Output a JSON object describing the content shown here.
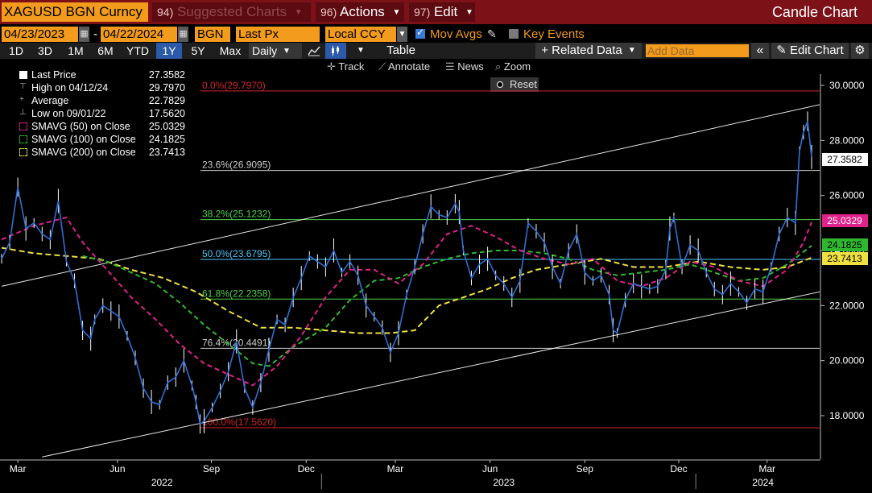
{
  "topbar": {
    "ticker": "XAGUSD BGN Curncy",
    "suggested_num": "94)",
    "suggested_label": "Suggested Charts",
    "actions_num": "96)",
    "actions_label": "Actions",
    "edit_num": "97)",
    "edit_label": "Edit",
    "chart_type": "Candle Chart"
  },
  "settings": {
    "start_date": "04/23/2023",
    "dash": "-",
    "end_date": "04/22/2024",
    "source": "BGN",
    "field": "Last Px",
    "currency": "Local CCY",
    "mov_avgs_label": "Mov Avgs",
    "key_events_label": "Key Events"
  },
  "toolbar": {
    "periods": [
      "1D",
      "3D",
      "1M",
      "6M",
      "YTD",
      "1Y",
      "5Y",
      "Max"
    ],
    "selected_period": "1Y",
    "frequency": "Daily",
    "table_label": "Table",
    "related_data_label": "+ Related Data",
    "add_data_placeholder": "Add Data",
    "collapse": "«",
    "edit_chart_label": "Edit Chart"
  },
  "tools": {
    "track": "Track",
    "annotate": "Annotate",
    "news": "News",
    "zoom": "Zoom",
    "reset": "Reset"
  },
  "legend": [
    {
      "label": "Last Price",
      "value": "27.3582",
      "color": "#ffffff"
    },
    {
      "label": "High on 04/12/24",
      "value": "29.7970",
      "color": "#cccccc"
    },
    {
      "label": "Average",
      "value": "22.7829",
      "color": "#cccccc"
    },
    {
      "label": "Low on 09/01/22",
      "value": "17.5620",
      "color": "#cccccc"
    },
    {
      "label": "SMAVG (50)  on Close",
      "value": "25.0329",
      "color": "#e0218a"
    },
    {
      "label": "SMAVG (100)  on Close",
      "value": "24.1825",
      "color": "#2fb82f"
    },
    {
      "label": "SMAVG (200)  on Close",
      "value": "23.7413",
      "color": "#f0e040"
    }
  ],
  "chart_data": {
    "type": "line",
    "ylim": [
      16.5,
      30.5
    ],
    "yticks": [
      {
        "value": 30,
        "label": "30.0000"
      },
      {
        "value": 28,
        "label": "28.0000"
      },
      {
        "value": 26,
        "label": "26.0000"
      },
      {
        "value": 24,
        "label": "24.0000"
      },
      {
        "value": 22,
        "label": "22.0000"
      },
      {
        "value": 20,
        "label": "20.0000"
      },
      {
        "value": 18,
        "label": "18.0000"
      }
    ],
    "xticks": [
      {
        "label": "Mar",
        "t": 0.02
      },
      {
        "label": "Jun",
        "t": 0.143
      },
      {
        "label": "Sep",
        "t": 0.259
      },
      {
        "label": "Dec",
        "t": 0.376
      },
      {
        "label": "Mar",
        "t": 0.486
      },
      {
        "label": "Jun",
        "t": 0.603
      },
      {
        "label": "Sep",
        "t": 0.72
      },
      {
        "label": "Dec",
        "t": 0.836
      },
      {
        "label": "Mar",
        "t": 0.945
      }
    ],
    "years": [
      {
        "label": "2022",
        "t": 0.198
      },
      {
        "label": "2023",
        "t": 0.62
      },
      {
        "label": "2024",
        "t": 0.94
      }
    ],
    "year_dividers": [
      0.395,
      0.857
    ],
    "series": [
      {
        "name": "Last Price",
        "color": "#2f6fd6",
        "values": [
          [
            0,
            23.7
          ],
          [
            0.01,
            24.3
          ],
          [
            0.02,
            26.3
          ],
          [
            0.03,
            24.8
          ],
          [
            0.04,
            25.0
          ],
          [
            0.05,
            24.6
          ],
          [
            0.06,
            24.4
          ],
          [
            0.07,
            25.8
          ],
          [
            0.08,
            23.6
          ],
          [
            0.09,
            22.9
          ],
          [
            0.1,
            21.1
          ],
          [
            0.11,
            20.8
          ],
          [
            0.115,
            21.5
          ],
          [
            0.125,
            22.0
          ],
          [
            0.135,
            21.8
          ],
          [
            0.145,
            21.6
          ],
          [
            0.155,
            20.9
          ],
          [
            0.165,
            20.1
          ],
          [
            0.175,
            19.0
          ],
          [
            0.185,
            18.5
          ],
          [
            0.195,
            18.4
          ],
          [
            0.205,
            19.2
          ],
          [
            0.215,
            19.4
          ],
          [
            0.225,
            20.0
          ],
          [
            0.235,
            19.1
          ],
          [
            0.24,
            18.5
          ],
          [
            0.245,
            17.7
          ],
          [
            0.25,
            17.8
          ],
          [
            0.26,
            18.3
          ],
          [
            0.27,
            18.9
          ],
          [
            0.28,
            19.6
          ],
          [
            0.29,
            20.7
          ],
          [
            0.3,
            19.0
          ],
          [
            0.31,
            18.3
          ],
          [
            0.32,
            19.2
          ],
          [
            0.33,
            20.4
          ],
          [
            0.34,
            21.5
          ],
          [
            0.35,
            21.3
          ],
          [
            0.36,
            22.3
          ],
          [
            0.37,
            23.0
          ],
          [
            0.38,
            23.8
          ],
          [
            0.39,
            23.6
          ],
          [
            0.4,
            23.4
          ],
          [
            0.41,
            24.0
          ],
          [
            0.42,
            23.2
          ],
          [
            0.43,
            23.6
          ],
          [
            0.44,
            23.1
          ],
          [
            0.45,
            22.0
          ],
          [
            0.46,
            21.6
          ],
          [
            0.47,
            21.2
          ],
          [
            0.48,
            20.3
          ],
          [
            0.49,
            21.0
          ],
          [
            0.5,
            22.4
          ],
          [
            0.51,
            23.4
          ],
          [
            0.52,
            24.6
          ],
          [
            0.53,
            25.6
          ],
          [
            0.54,
            25.3
          ],
          [
            0.55,
            25.2
          ],
          [
            0.56,
            25.7
          ],
          [
            0.565,
            25.4
          ],
          [
            0.57,
            24.0
          ],
          [
            0.58,
            23.0
          ],
          [
            0.59,
            23.5
          ],
          [
            0.6,
            23.7
          ],
          [
            0.61,
            23.1
          ],
          [
            0.62,
            22.8
          ],
          [
            0.63,
            22.3
          ],
          [
            0.64,
            22.9
          ],
          [
            0.65,
            25.0
          ],
          [
            0.66,
            24.7
          ],
          [
            0.67,
            24.3
          ],
          [
            0.68,
            23.4
          ],
          [
            0.69,
            22.8
          ],
          [
            0.7,
            24.0
          ],
          [
            0.71,
            24.6
          ],
          [
            0.72,
            23.2
          ],
          [
            0.73,
            22.9
          ],
          [
            0.74,
            23.1
          ],
          [
            0.75,
            22.4
          ],
          [
            0.755,
            21.1
          ],
          [
            0.76,
            21.0
          ],
          [
            0.77,
            22.2
          ],
          [
            0.78,
            22.8
          ],
          [
            0.79,
            22.7
          ],
          [
            0.8,
            22.6
          ],
          [
            0.81,
            22.7
          ],
          [
            0.82,
            23.3
          ],
          [
            0.825,
            24.8
          ],
          [
            0.83,
            25.2
          ],
          [
            0.84,
            23.4
          ],
          [
            0.85,
            24.2
          ],
          [
            0.86,
            24.0
          ],
          [
            0.87,
            23.2
          ],
          [
            0.88,
            22.6
          ],
          [
            0.89,
            22.4
          ],
          [
            0.9,
            22.8
          ],
          [
            0.91,
            22.5
          ],
          [
            0.92,
            22.1
          ],
          [
            0.93,
            22.6
          ],
          [
            0.94,
            22.5
          ],
          [
            0.95,
            23.4
          ],
          [
            0.96,
            24.6
          ],
          [
            0.97,
            25.2
          ],
          [
            0.98,
            25.0
          ],
          [
            0.985,
            27.6
          ],
          [
            0.99,
            28.3
          ],
          [
            0.995,
            28.7
          ],
          [
            1.0,
            27.4
          ]
        ]
      },
      {
        "name": "SMAVG (50)  on Close",
        "color": "#e0218a",
        "values": [
          [
            0,
            24.4
          ],
          [
            0.04,
            24.9
          ],
          [
            0.08,
            25.2
          ],
          [
            0.1,
            24.3
          ],
          [
            0.13,
            23.3
          ],
          [
            0.16,
            22.3
          ],
          [
            0.19,
            21.5
          ],
          [
            0.22,
            20.6
          ],
          [
            0.25,
            19.9
          ],
          [
            0.28,
            19.5
          ],
          [
            0.31,
            19.1
          ],
          [
            0.34,
            19.8
          ],
          [
            0.37,
            20.9
          ],
          [
            0.4,
            22.3
          ],
          [
            0.43,
            23.3
          ],
          [
            0.46,
            23.3
          ],
          [
            0.49,
            22.8
          ],
          [
            0.52,
            23.5
          ],
          [
            0.55,
            24.6
          ],
          [
            0.58,
            24.9
          ],
          [
            0.61,
            24.5
          ],
          [
            0.64,
            24.0
          ],
          [
            0.67,
            23.7
          ],
          [
            0.7,
            23.5
          ],
          [
            0.73,
            23.7
          ],
          [
            0.76,
            22.9
          ],
          [
            0.79,
            22.7
          ],
          [
            0.82,
            23.0
          ],
          [
            0.85,
            23.6
          ],
          [
            0.88,
            23.4
          ],
          [
            0.91,
            22.9
          ],
          [
            0.94,
            22.7
          ],
          [
            0.97,
            23.3
          ],
          [
            0.99,
            24.3
          ],
          [
            1.0,
            25.03
          ]
        ]
      },
      {
        "name": "SMAVG (100)  on Close",
        "color": "#2fb82f",
        "values": [
          [
            0.1,
            23.8
          ],
          [
            0.13,
            23.6
          ],
          [
            0.16,
            23.2
          ],
          [
            0.19,
            22.8
          ],
          [
            0.22,
            22.1
          ],
          [
            0.25,
            21.3
          ],
          [
            0.28,
            20.6
          ],
          [
            0.31,
            19.9
          ],
          [
            0.33,
            19.8
          ],
          [
            0.36,
            20.5
          ],
          [
            0.4,
            21.2
          ],
          [
            0.43,
            22.2
          ],
          [
            0.46,
            22.9
          ],
          [
            0.49,
            23.0
          ],
          [
            0.52,
            23.4
          ],
          [
            0.55,
            23.7
          ],
          [
            0.58,
            23.9
          ],
          [
            0.61,
            24.0
          ],
          [
            0.64,
            24.0
          ],
          [
            0.67,
            23.9
          ],
          [
            0.7,
            23.7
          ],
          [
            0.73,
            23.3
          ],
          [
            0.76,
            23.1
          ],
          [
            0.79,
            23.2
          ],
          [
            0.82,
            23.3
          ],
          [
            0.85,
            23.5
          ],
          [
            0.88,
            23.2
          ],
          [
            0.91,
            22.9
          ],
          [
            0.94,
            23.0
          ],
          [
            0.97,
            23.5
          ],
          [
            1.0,
            24.18
          ]
        ]
      },
      {
        "name": "SMAVG (200)  on Close",
        "color": "#f0e040",
        "values": [
          [
            0,
            24.1
          ],
          [
            0.04,
            23.9
          ],
          [
            0.08,
            23.8
          ],
          [
            0.12,
            23.7
          ],
          [
            0.16,
            23.3
          ],
          [
            0.2,
            23.0
          ],
          [
            0.24,
            22.5
          ],
          [
            0.28,
            21.8
          ],
          [
            0.32,
            21.2
          ],
          [
            0.36,
            21.2
          ],
          [
            0.4,
            21.1
          ],
          [
            0.44,
            21.0
          ],
          [
            0.48,
            21.0
          ],
          [
            0.51,
            21.1
          ],
          [
            0.54,
            22.0
          ],
          [
            0.57,
            22.3
          ],
          [
            0.6,
            22.6
          ],
          [
            0.63,
            23.0
          ],
          [
            0.66,
            23.3
          ],
          [
            0.7,
            23.5
          ],
          [
            0.74,
            23.7
          ],
          [
            0.78,
            23.4
          ],
          [
            0.82,
            23.4
          ],
          [
            0.86,
            23.6
          ],
          [
            0.9,
            23.4
          ],
          [
            0.94,
            23.3
          ],
          [
            0.97,
            23.4
          ],
          [
            1.0,
            23.74
          ]
        ]
      }
    ],
    "fib_levels": [
      {
        "label": "0.0%(29.7970)",
        "value": 29.797,
        "color": "#d1252a"
      },
      {
        "label": "23.6%(26.9095)",
        "value": 26.9095,
        "color": "#cccccc"
      },
      {
        "label": "38.2%(25.1232)",
        "value": 25.1232,
        "color": "#4dd04d"
      },
      {
        "label": "50.0%(23.6795)",
        "value": 23.6795,
        "color": "#4fc3f7"
      },
      {
        "label": "61.8%(22.2358)",
        "value": 22.2358,
        "color": "#4dd04d"
      },
      {
        "label": "76.4%(20.4491)",
        "value": 20.4491,
        "color": "#cccccc"
      },
      {
        "label": "100.0%(17.5620)",
        "value": 17.562,
        "color": "#d1252a"
      }
    ],
    "channel": {
      "upper": {
        "from": [
          0,
          22.7
        ],
        "to": [
          1.0,
          29.3
        ]
      },
      "lower": {
        "from": [
          0.05,
          16.5
        ],
        "to": [
          1.0,
          22.5
        ]
      }
    },
    "last_labels": [
      {
        "value": 27.3582,
        "text": "27.3582",
        "bg": "#ffffff",
        "fg": "#000000"
      },
      {
        "value": 25.0329,
        "text": "25.0329",
        "bg": "#e0218a",
        "fg": "#ffffff"
      },
      {
        "value": 24.1825,
        "text": "24.1825",
        "bg": "#2fb82f",
        "fg": "#000000"
      },
      {
        "value": 23.7413,
        "text": "23.7413",
        "bg": "#f0e040",
        "fg": "#000000"
      }
    ]
  }
}
